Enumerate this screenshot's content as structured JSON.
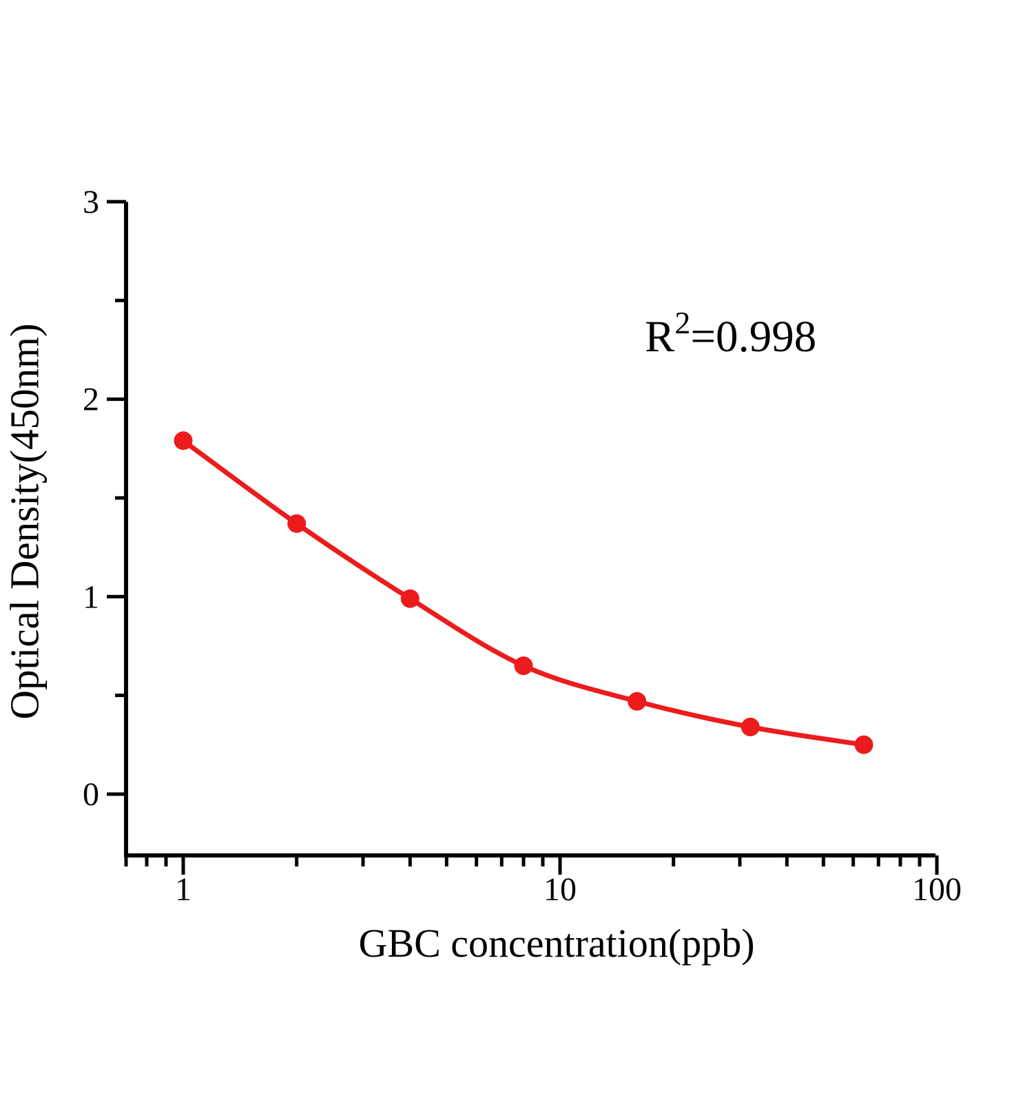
{
  "chart_data": {
    "type": "scatter",
    "xlabel": "GBC concentration(ppb)",
    "ylabel": "Optical Density(450nm)",
    "x_scale": "log",
    "series": [
      {
        "color": "#EC1C1C",
        "marker": "circle",
        "line_style": "solid",
        "x": [
          1,
          2,
          4,
          8,
          16,
          32,
          64
        ],
        "y": [
          1.79,
          1.37,
          0.99,
          0.65,
          0.47,
          0.34,
          0.25
        ]
      }
    ],
    "annotation": {
      "base": "R",
      "superscript": "2",
      "rest": "=0.998"
    },
    "x_ticks": {
      "major": [
        1,
        10,
        100
      ],
      "major_labels": [
        "1",
        "10",
        "100"
      ],
      "minor": [
        0.7,
        0.8,
        0.9,
        2,
        3,
        4,
        5,
        6,
        7,
        8,
        9,
        20,
        30,
        40,
        50,
        60,
        70,
        80,
        90
      ]
    },
    "y_ticks": {
      "major": [
        0,
        1,
        2,
        3
      ],
      "major_labels": [
        "0",
        "1",
        "2",
        "3"
      ],
      "minor": [
        0.5,
        1.5,
        2.5
      ]
    },
    "xlim": [
      0.7,
      100
    ],
    "ylim": [
      -0.31,
      3
    ],
    "axis_color": "#000000",
    "background": "#FFFFFF",
    "grid": "off",
    "legend": "none"
  }
}
